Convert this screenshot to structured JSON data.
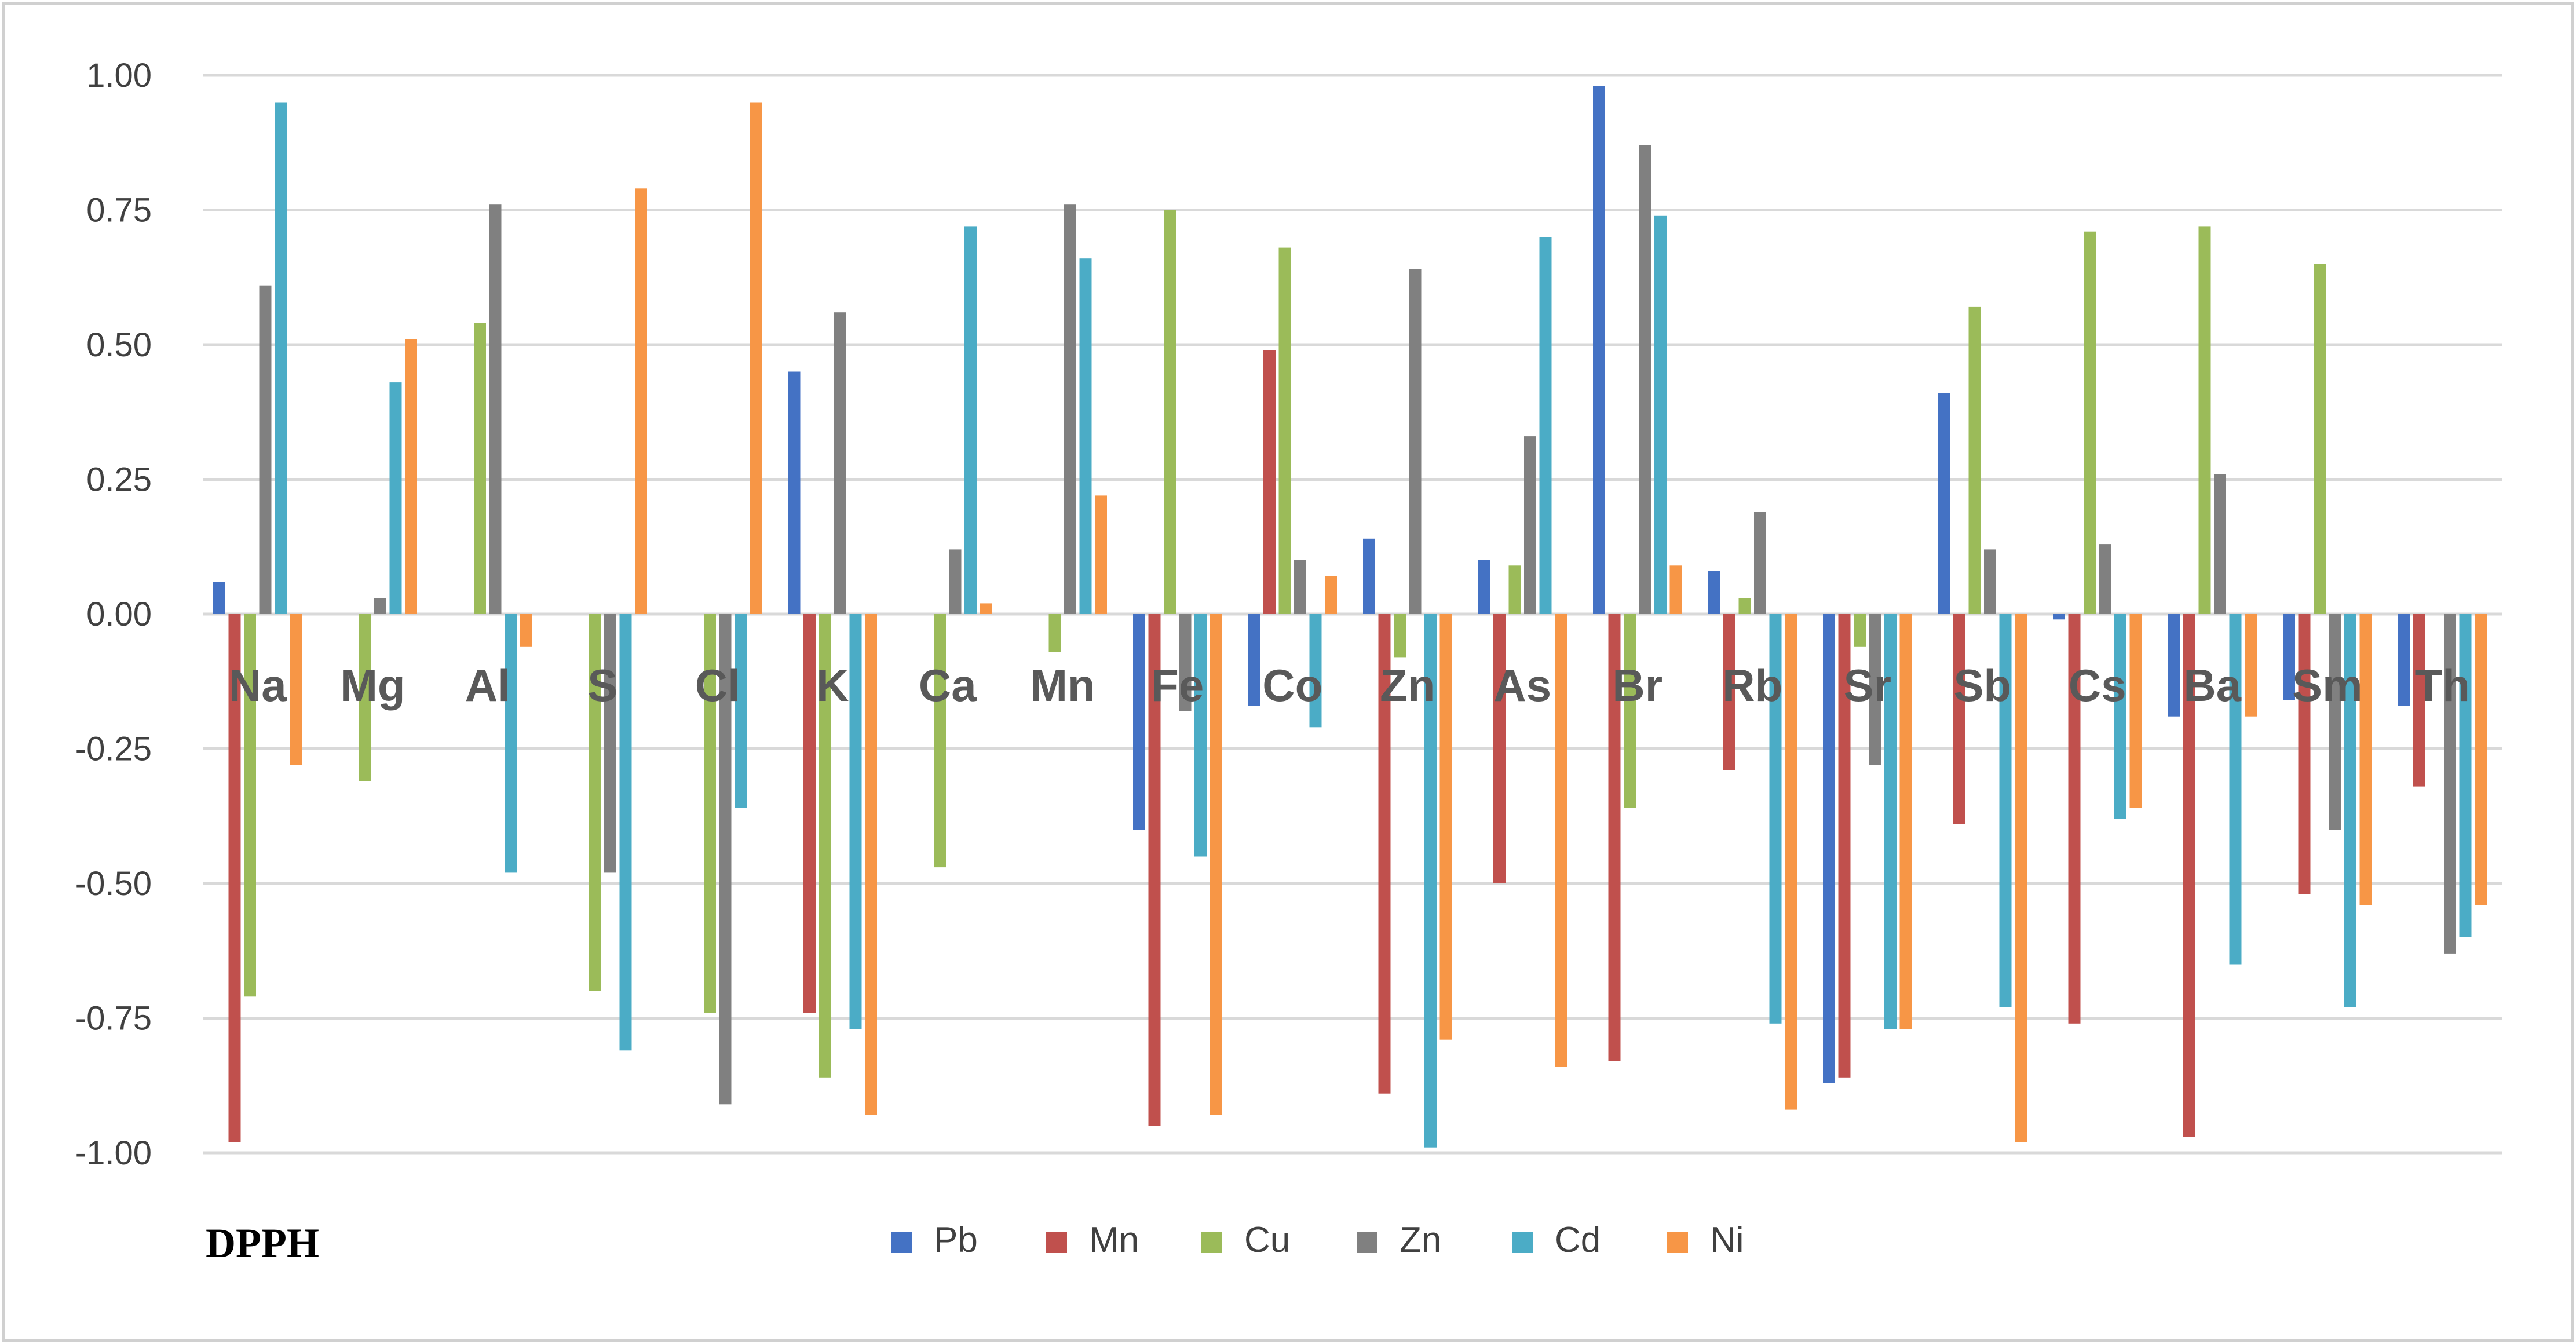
{
  "chart_data": {
    "type": "bar",
    "title": "",
    "panel_label": "DPPH",
    "xlabel": "",
    "ylabel": "",
    "ylim": [
      -1.0,
      1.0
    ],
    "yticks": [
      "1.00",
      "0.75",
      "0.50",
      "0.25",
      "0.00",
      "-0.25",
      "-0.50",
      "-0.75",
      "-1.00"
    ],
    "ytick_values": [
      1.0,
      0.75,
      0.5,
      0.25,
      0.0,
      -0.25,
      -0.5,
      -0.75,
      -1.0
    ],
    "grid": true,
    "legend_position": "bottom",
    "categories": [
      "Na",
      "Mg",
      "Al",
      "S",
      "Cl",
      "K",
      "Ca",
      "Mn",
      "Fe",
      "Co",
      "Zn",
      "As",
      "Br",
      "Rb",
      "Sr",
      "Sb",
      "Cs",
      "Ba",
      "Sm",
      "Th"
    ],
    "series": [
      {
        "name": "Pb",
        "color": "#4472C4",
        "values": [
          0.06,
          0.0,
          0.0,
          0.0,
          0.0,
          0.45,
          0.0,
          0.0,
          -0.4,
          -0.17,
          0.14,
          0.1,
          0.98,
          0.08,
          -0.87,
          0.41,
          -0.01,
          -0.19,
          -0.16,
          -0.17
        ]
      },
      {
        "name": "Mn",
        "color": "#C0504D",
        "values": [
          -0.98,
          0.0,
          0.0,
          0.0,
          0.0,
          -0.74,
          0.0,
          0.0,
          -0.95,
          0.49,
          -0.89,
          -0.5,
          -0.83,
          -0.29,
          -0.86,
          -0.39,
          -0.76,
          -0.97,
          -0.52,
          -0.32
        ]
      },
      {
        "name": "Cu",
        "color": "#9BBB59",
        "values": [
          -0.71,
          -0.31,
          0.54,
          -0.7,
          -0.74,
          -0.86,
          -0.47,
          -0.07,
          0.75,
          0.68,
          -0.08,
          0.09,
          -0.36,
          0.03,
          -0.06,
          0.57,
          0.71,
          0.72,
          0.65,
          0.0
        ]
      },
      {
        "name": "Zn",
        "color": "#808080",
        "values": [
          0.61,
          0.03,
          0.76,
          -0.48,
          -0.91,
          0.56,
          0.12,
          0.76,
          -0.18,
          0.1,
          0.64,
          0.33,
          0.87,
          0.19,
          -0.28,
          0.12,
          0.13,
          0.26,
          -0.4,
          -0.63
        ]
      },
      {
        "name": "Cd",
        "color": "#4BACC6",
        "values": [
          0.95,
          0.43,
          -0.48,
          -0.81,
          -0.36,
          -0.77,
          0.72,
          0.66,
          -0.45,
          -0.21,
          -0.99,
          0.7,
          0.74,
          -0.76,
          -0.77,
          -0.73,
          -0.38,
          -0.65,
          -0.73,
          -0.6
        ]
      },
      {
        "name": "Ni",
        "color": "#F79646",
        "values": [
          -0.28,
          0.51,
          -0.06,
          0.79,
          0.95,
          -0.93,
          0.02,
          0.22,
          -0.93,
          0.07,
          -0.79,
          -0.84,
          0.09,
          -0.92,
          -0.77,
          -0.98,
          -0.36,
          -0.19,
          -0.54,
          -0.54
        ]
      }
    ]
  },
  "colors": {
    "gridline": "#D9D9D9",
    "frame_border": "#D0D0D0",
    "category_label": "#595959"
  }
}
